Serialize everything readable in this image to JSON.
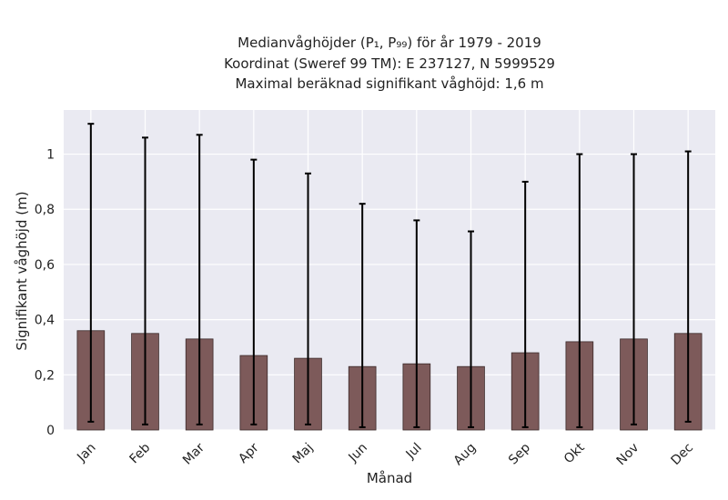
{
  "chart_data": {
    "type": "bar",
    "title_lines": [
      "Medianvåghöjder (P₁, P₉₉) för år 1979 - 2019",
      "Koordinat (Sweref 99 TM): E 237127, N 5999529",
      "Maximal beräknad signifikant våghöjd: 1,6 m"
    ],
    "xlabel": "Månad",
    "ylabel": "Signifikant våghöjd (m)",
    "categories": [
      "Jan",
      "Feb",
      "Mar",
      "Apr",
      "Maj",
      "Jun",
      "Jul",
      "Aug",
      "Sep",
      "Okt",
      "Nov",
      "Dec"
    ],
    "values": [
      0.36,
      0.35,
      0.33,
      0.27,
      0.26,
      0.23,
      0.24,
      0.23,
      0.28,
      0.32,
      0.33,
      0.35
    ],
    "p1": [
      0.03,
      0.02,
      0.02,
      0.02,
      0.02,
      0.01,
      0.01,
      0.01,
      0.01,
      0.01,
      0.02,
      0.03
    ],
    "p99": [
      1.11,
      1.06,
      1.07,
      0.98,
      0.93,
      0.82,
      0.76,
      0.72,
      0.9,
      1.0,
      1.0,
      1.01
    ],
    "ylim": [
      0,
      1.16
    ],
    "yticks": [
      0,
      0.2,
      0.4,
      0.6,
      0.8,
      1
    ],
    "ytick_labels": [
      "0",
      "0,2",
      "0,4",
      "0,6",
      "0,8",
      "1"
    ],
    "grid": true,
    "colors": {
      "bar": "#7d5a5a",
      "bar_edge": "#3b2a2a",
      "plot_bg": "#eaeaf2",
      "grid": "#ffffff",
      "errorbar": "#000000"
    }
  }
}
